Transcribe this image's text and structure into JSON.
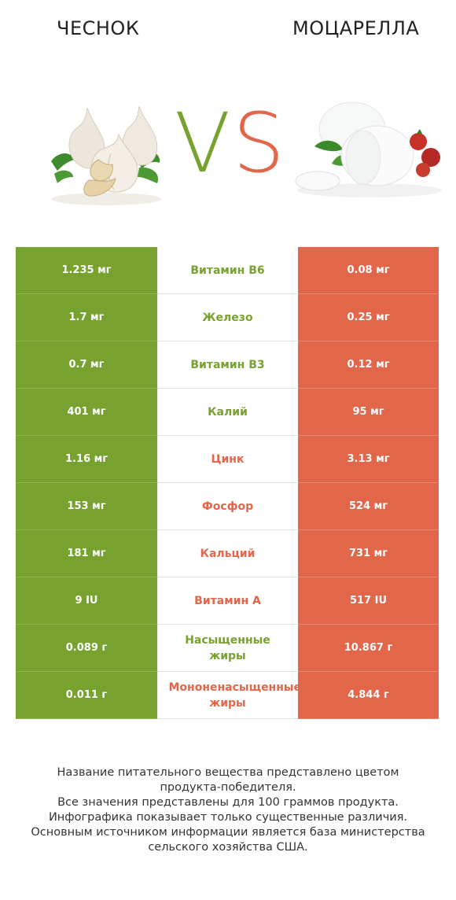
{
  "header": {
    "left_title": "ЧЕСНОК",
    "right_title": "МОЦАРЕЛЛА",
    "vs_v": "V",
    "vs_s": "S"
  },
  "colors": {
    "garlic": "#78a22f",
    "mozzarella": "#e2664a"
  },
  "chart_data": {
    "type": "table",
    "columns": [
      "Чеснок",
      "Моцарелла"
    ],
    "rows": [
      {
        "nutrient": "Витамин B6",
        "left": "1.235 мг",
        "right": "0.08 мг",
        "winner": "left",
        "left_value": 1.235,
        "right_value": 0.08,
        "unit": "мг"
      },
      {
        "nutrient": "Железо",
        "left": "1.7 мг",
        "right": "0.25 мг",
        "winner": "left",
        "left_value": 1.7,
        "right_value": 0.25,
        "unit": "мг"
      },
      {
        "nutrient": "Витамин B3",
        "left": "0.7 мг",
        "right": "0.12 мг",
        "winner": "left",
        "left_value": 0.7,
        "right_value": 0.12,
        "unit": "мг"
      },
      {
        "nutrient": "Калий",
        "left": "401 мг",
        "right": "95 мг",
        "winner": "left",
        "left_value": 401,
        "right_value": 95,
        "unit": "мг"
      },
      {
        "nutrient": "Цинк",
        "left": "1.16 мг",
        "right": "3.13 мг",
        "winner": "right",
        "left_value": 1.16,
        "right_value": 3.13,
        "unit": "мг"
      },
      {
        "nutrient": "Фосфор",
        "left": "153 мг",
        "right": "524 мг",
        "winner": "right",
        "left_value": 153,
        "right_value": 524,
        "unit": "мг"
      },
      {
        "nutrient": "Кальций",
        "left": "181 мг",
        "right": "731 мг",
        "winner": "right",
        "left_value": 181,
        "right_value": 731,
        "unit": "мг"
      },
      {
        "nutrient": "Витамин A",
        "left": "9 IU",
        "right": "517 IU",
        "winner": "right",
        "left_value": 9,
        "right_value": 517,
        "unit": "IU"
      },
      {
        "nutrient": "Насыщенные жиры",
        "left": "0.089 г",
        "right": "10.867 г",
        "winner": "left",
        "left_value": 0.089,
        "right_value": 10.867,
        "unit": "г"
      },
      {
        "nutrient": "Мононенасыщенные жиры",
        "left": "0.011 г",
        "right": "4.844 г",
        "winner": "right",
        "left_value": 0.011,
        "right_value": 4.844,
        "unit": "г"
      }
    ]
  },
  "footer": {
    "lines": [
      "Название питательного вещества представлено цветом",
      "продукта-победителя.",
      "Все значения представлены для 100 граммов продукта.",
      "Инфографика показывает только существенные различия.",
      "Основным источником информации является база министерства",
      "сельского хозяйства США."
    ]
  }
}
